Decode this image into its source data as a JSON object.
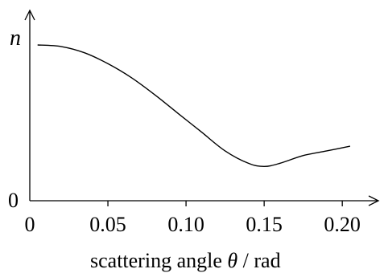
{
  "chart_data": {
    "type": "line",
    "title": "",
    "ylabel": "n",
    "xlabel_prefix": "scattering angle",
    "xlabel_symbol": "θ",
    "xlabel_suffix": "/ rad",
    "y_origin_label": "0",
    "x_tick_labels": [
      "0",
      "0.05",
      "0.10",
      "0.15",
      "0.20"
    ],
    "x_ticks": [
      0,
      0.05,
      0.1,
      0.15,
      0.2
    ],
    "xlim": [
      0,
      0.22
    ],
    "ylim": [
      0,
      1
    ],
    "grid": false,
    "series": [
      {
        "x": [
          0.005,
          0.02,
          0.035,
          0.05,
          0.065,
          0.08,
          0.095,
          0.11,
          0.125,
          0.14,
          0.15,
          0.16,
          0.175,
          0.19,
          0.205
        ],
        "y": [
          1.0,
          0.99,
          0.95,
          0.88,
          0.79,
          0.68,
          0.56,
          0.44,
          0.32,
          0.24,
          0.22,
          0.24,
          0.29,
          0.32,
          0.35
        ]
      }
    ]
  }
}
